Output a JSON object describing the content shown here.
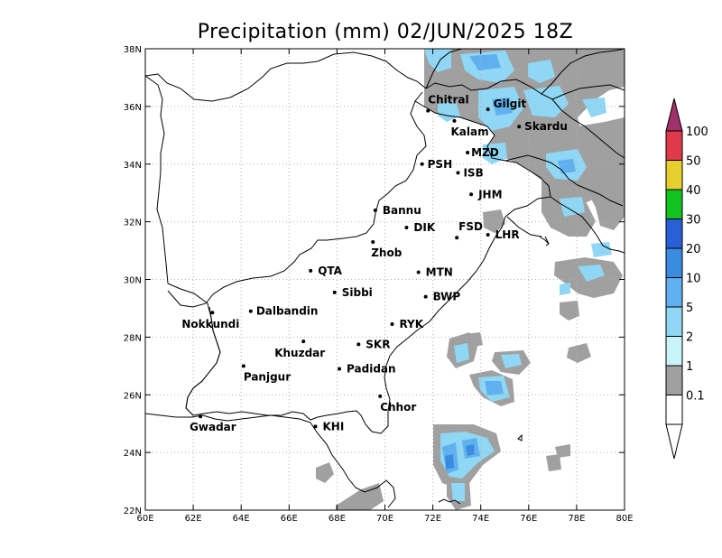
{
  "title": "Precipitation (mm) 02/JUN/2025 18Z",
  "axes": {
    "x_ticks": [
      "60E",
      "62E",
      "64E",
      "66E",
      "68E",
      "70E",
      "72E",
      "74E",
      "76E",
      "78E",
      "80E"
    ],
    "y_ticks": [
      "38N",
      "36N",
      "34N",
      "32N",
      "30N",
      "28N",
      "26N",
      "24N",
      "22N"
    ],
    "lon_range": [
      60,
      80
    ],
    "lat_range": [
      22,
      38
    ],
    "grid": true
  },
  "cities": [
    {
      "name": "Chitral",
      "lon": 71.8,
      "lat": 35.85
    },
    {
      "name": "Gilgit",
      "lon": 74.3,
      "lat": 35.9
    },
    {
      "name": "Kalam",
      "lon": 72.9,
      "lat": 35.5
    },
    {
      "name": "Skardu",
      "lon": 75.6,
      "lat": 35.3
    },
    {
      "name": "MZD",
      "lon": 73.45,
      "lat": 34.4
    },
    {
      "name": "PSH",
      "lon": 71.55,
      "lat": 34.0
    },
    {
      "name": "ISB",
      "lon": 73.05,
      "lat": 33.7
    },
    {
      "name": "JHM",
      "lon": 73.6,
      "lat": 32.95
    },
    {
      "name": "Bannu",
      "lon": 69.6,
      "lat": 32.4
    },
    {
      "name": "DIK",
      "lon": 70.9,
      "lat": 31.8
    },
    {
      "name": "FSD",
      "lon": 73.0,
      "lat": 31.45
    },
    {
      "name": "LHR",
      "lon": 74.3,
      "lat": 31.55
    },
    {
      "name": "Zhob",
      "lon": 69.5,
      "lat": 31.3
    },
    {
      "name": "QTA",
      "lon": 66.9,
      "lat": 30.3
    },
    {
      "name": "MTN",
      "lon": 71.4,
      "lat": 30.25
    },
    {
      "name": "Sibbi",
      "lon": 67.9,
      "lat": 29.55
    },
    {
      "name": "BWP",
      "lon": 71.7,
      "lat": 29.4
    },
    {
      "name": "Dalbandin",
      "lon": 64.4,
      "lat": 28.9
    },
    {
      "name": "Nokkundi",
      "lon": 62.8,
      "lat": 28.85
    },
    {
      "name": "RYK",
      "lon": 70.3,
      "lat": 28.45
    },
    {
      "name": "Khuzdar",
      "lon": 66.6,
      "lat": 27.85
    },
    {
      "name": "SKR",
      "lon": 68.9,
      "lat": 27.75
    },
    {
      "name": "Panjgur",
      "lon": 64.1,
      "lat": 27.0
    },
    {
      "name": "Padidan",
      "lon": 68.1,
      "lat": 26.9
    },
    {
      "name": "Chhor",
      "lon": 69.8,
      "lat": 25.95
    },
    {
      "name": "KHI",
      "lon": 67.1,
      "lat": 24.9
    },
    {
      "name": "Gwadar",
      "lon": 62.3,
      "lat": 25.25
    }
  ],
  "legend": {
    "bins": [
      {
        "label": "100",
        "color": "#e03a4a"
      },
      {
        "label": "50",
        "color": "#e6cf2e"
      },
      {
        "label": "40",
        "color": "#12c21f"
      },
      {
        "label": "30",
        "color": "#2a60d6"
      },
      {
        "label": "20",
        "color": "#3a8ce0"
      },
      {
        "label": "10",
        "color": "#5fb0ee"
      },
      {
        "label": "5",
        "color": "#8fd7f4"
      },
      {
        "label": "2",
        "color": "#c8f4f8"
      },
      {
        "label": "1",
        "color": "#a0a0a0"
      },
      {
        "label": "0.1",
        "color": "#ffffff"
      }
    ],
    "top_triangle_color": "#a0316c",
    "bottom_triangle_color": "#ffffff"
  }
}
